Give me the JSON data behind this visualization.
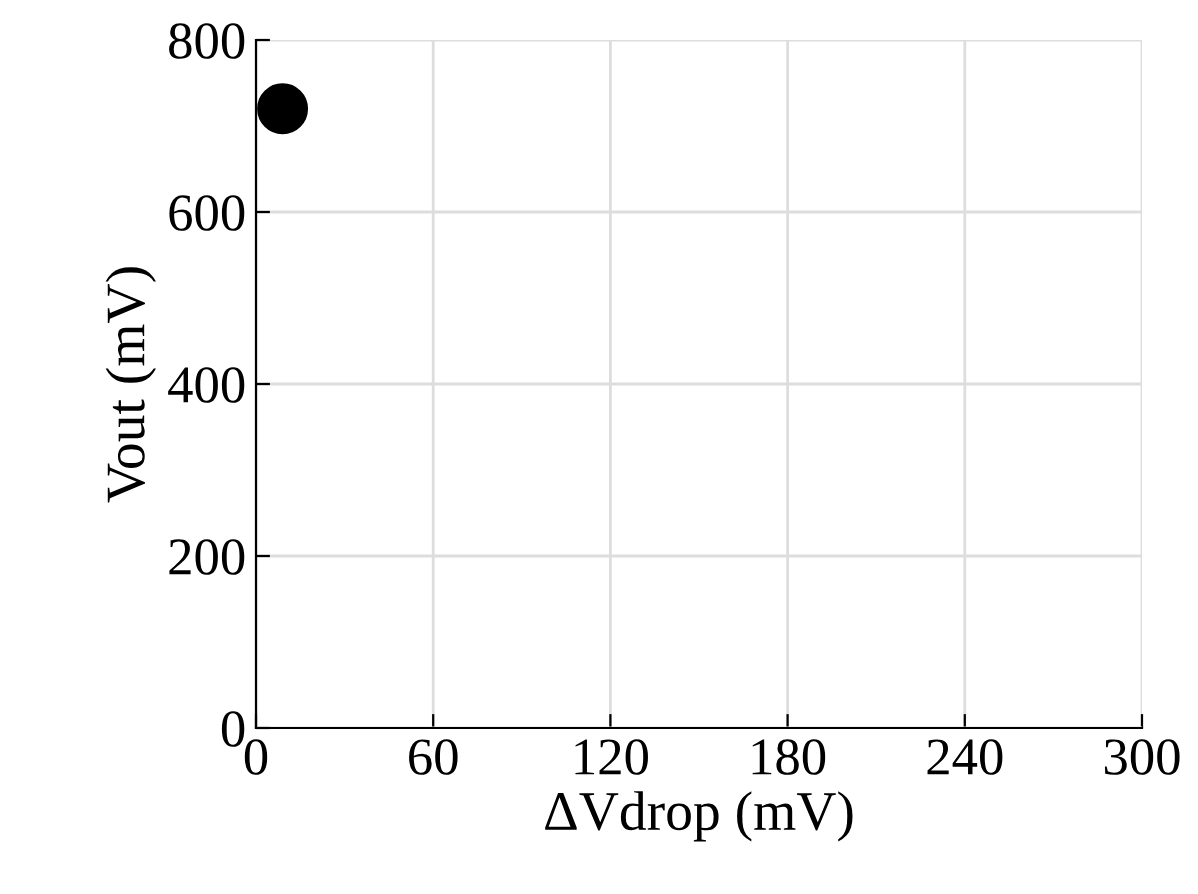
{
  "chart_data": {
    "type": "scatter",
    "xlabel": "ΔVdrop (mV)",
    "ylabel": "Vout (mV)",
    "x": [
      9
    ],
    "values": [
      720
    ],
    "color": "#000000",
    "marker": "circle",
    "xlim": [
      0,
      300
    ],
    "xticks": [
      0,
      60,
      120,
      180,
      240,
      300
    ],
    "ylim": [
      0,
      800
    ],
    "yticks": [
      0,
      200,
      400,
      600,
      800
    ],
    "grid": true,
    "legend": false
  }
}
